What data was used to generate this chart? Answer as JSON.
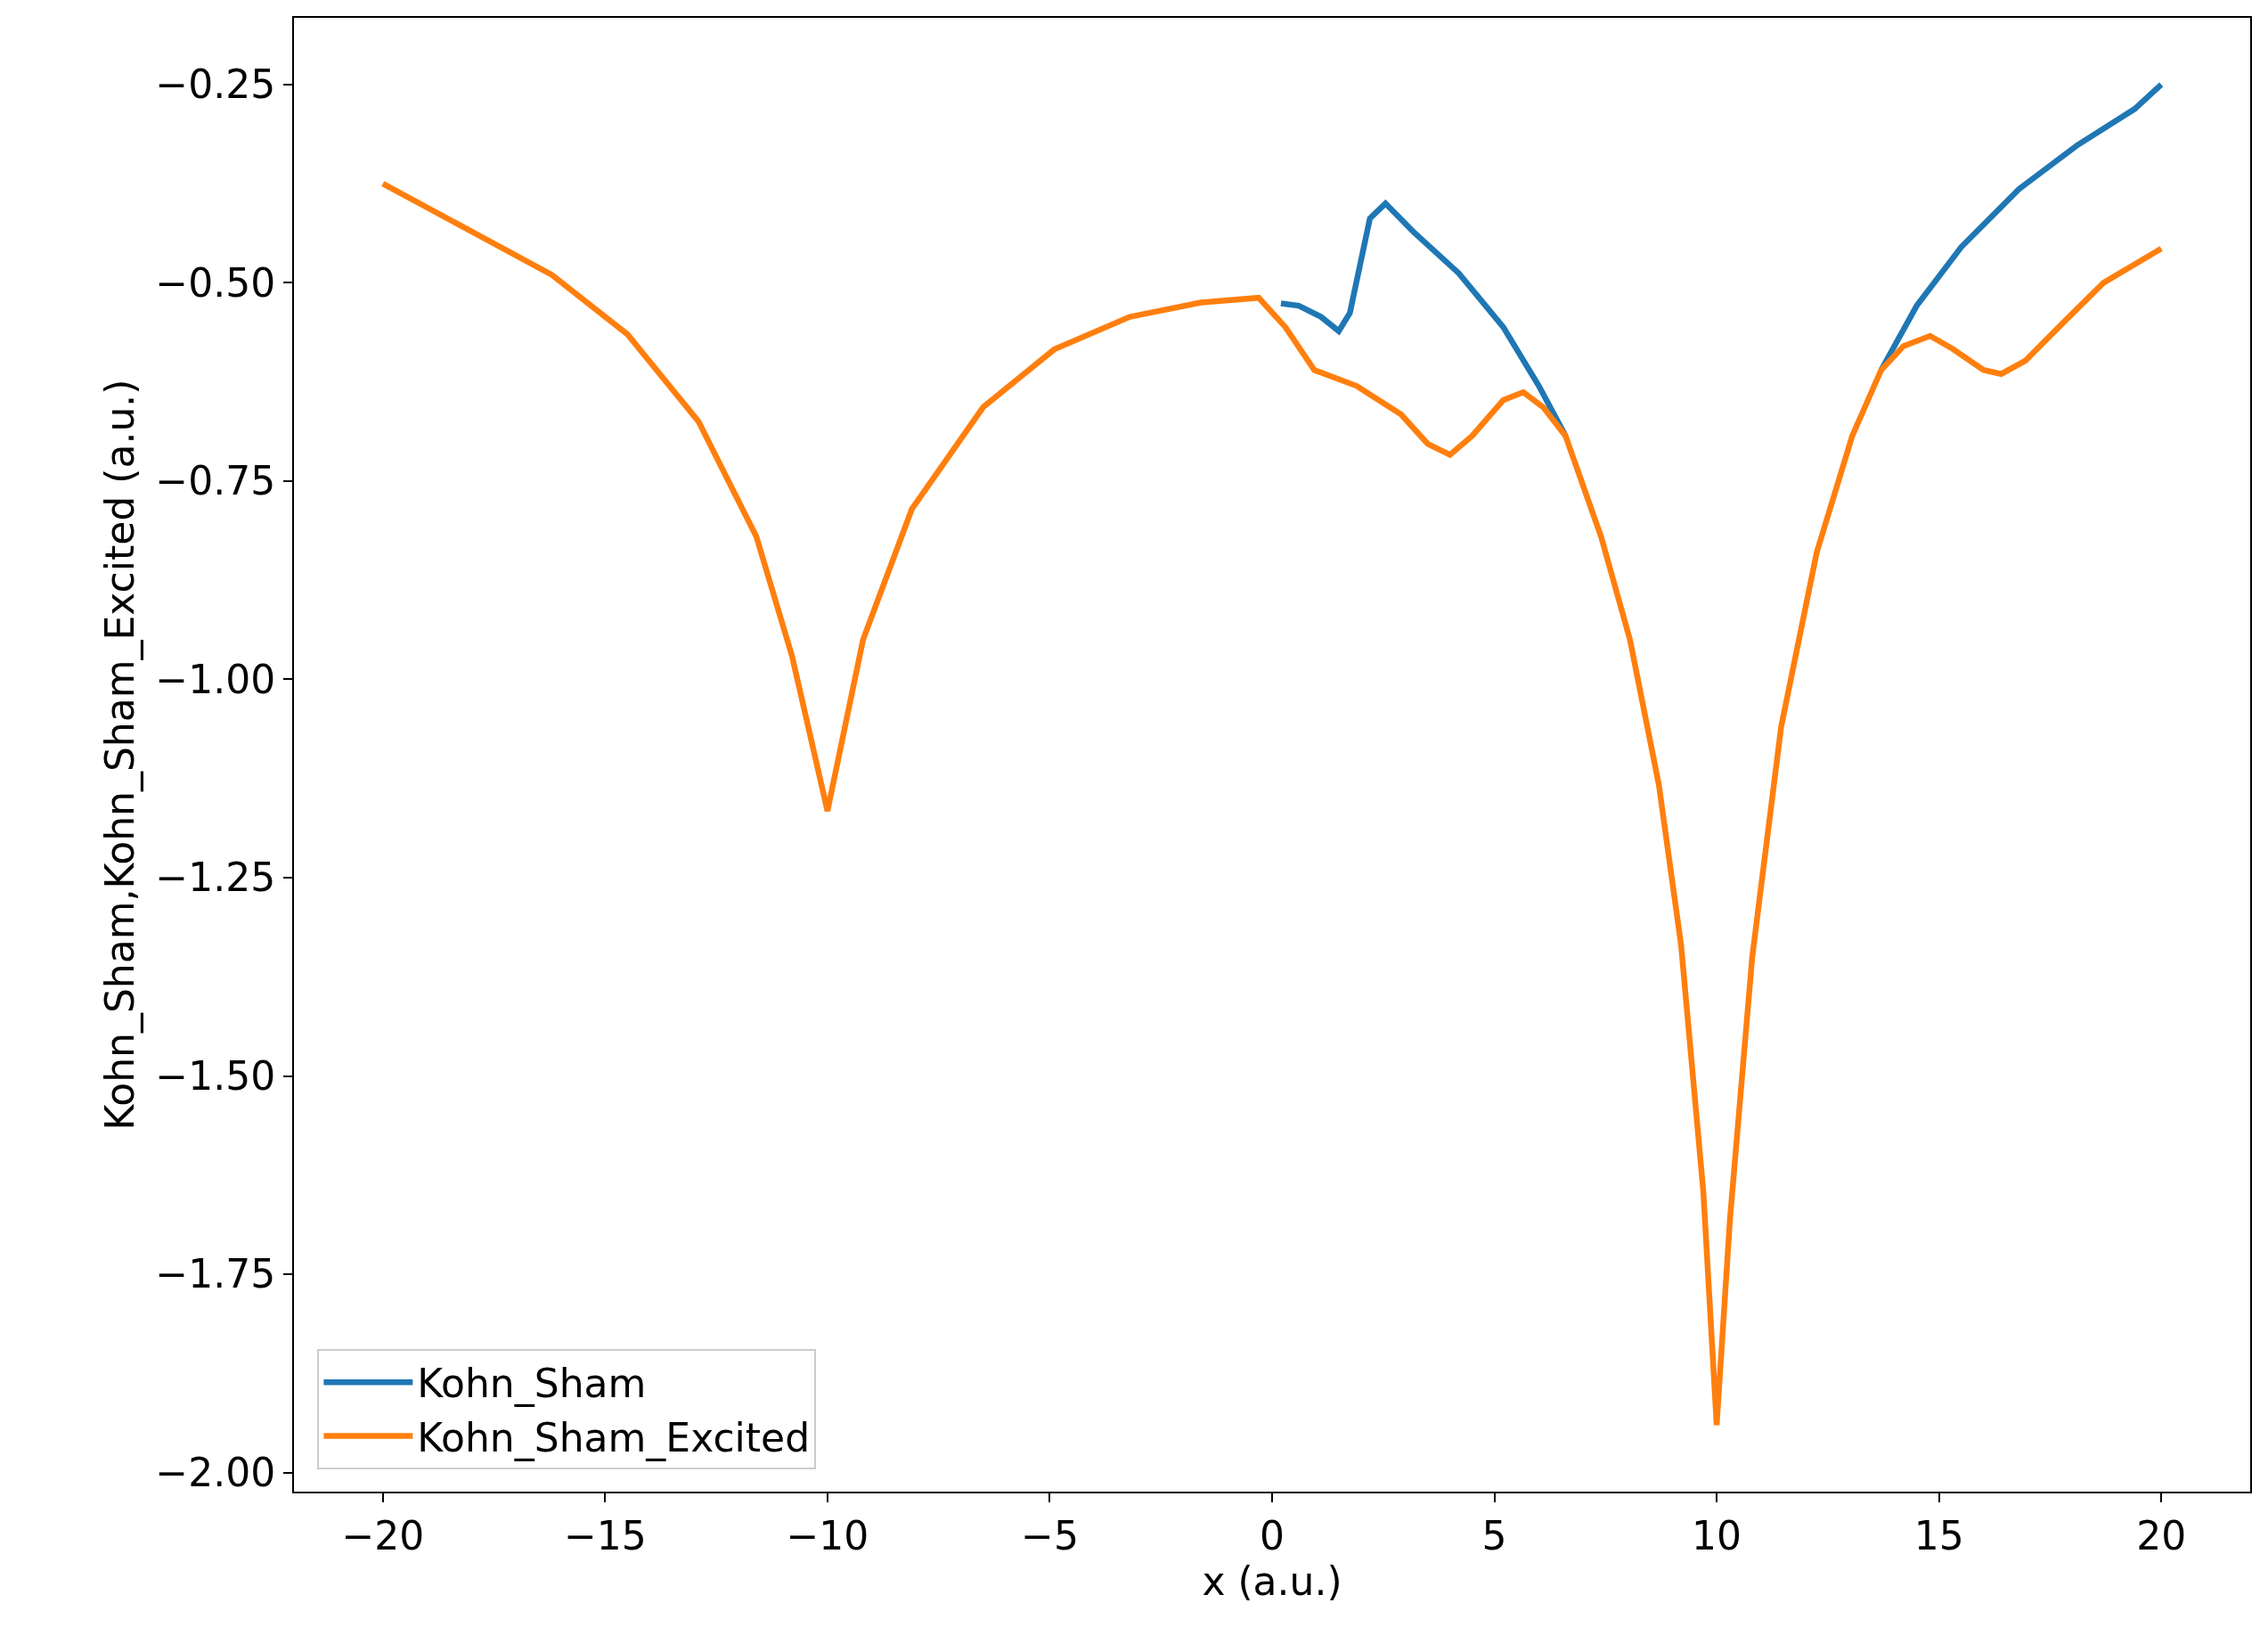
{
  "chart_data": {
    "type": "line",
    "xlabel": "x (a.u.)",
    "ylabel": "Kohn_Sham,Kohn_Sham_Excited (a.u.)",
    "xlim": [
      -22,
      22
    ],
    "ylim": [
      -2.024,
      -0.166
    ],
    "xticks": [
      {
        "value": -20,
        "label": "−20"
      },
      {
        "value": -15,
        "label": "−15"
      },
      {
        "value": -10,
        "label": "−10"
      },
      {
        "value": -5,
        "label": "−5"
      },
      0,
      5,
      10,
      15,
      20
    ],
    "yticks": [
      {
        "value": -2.0,
        "label": "−2.00"
      },
      {
        "value": -1.75,
        "label": "−1.75"
      },
      {
        "value": -1.5,
        "label": "−1.50"
      },
      {
        "value": -1.25,
        "label": "−1.25"
      },
      {
        "value": -1.0,
        "label": "−1.00"
      },
      {
        "value": -0.75,
        "label": "−0.75"
      },
      {
        "value": -0.5,
        "label": "−0.50"
      },
      {
        "value": -0.25,
        "label": "−0.25"
      }
    ],
    "legend": "bottom left",
    "marker": "none",
    "line_style": "solid",
    "series": [
      {
        "name": "Kohn_Sham",
        "color": "#1f77b4",
        "x": [
          0.2,
          0.6,
          1.1,
          1.5,
          1.75,
          2.2,
          2.55,
          3.2,
          4.2,
          5.2,
          6.0,
          6.6,
          null,
          13.7,
          14.5,
          15.5,
          16.8,
          18.1,
          19.4,
          20
        ],
        "values": [
          -0.526,
          -0.529,
          -0.543,
          -0.561,
          -0.538,
          -0.419,
          -0.4,
          -0.437,
          -0.488,
          -0.556,
          -0.63,
          -0.693,
          null,
          -0.61,
          -0.529,
          -0.455,
          -0.382,
          -0.327,
          -0.281,
          -0.25
        ]
      },
      {
        "name": "Kohn_Sham_Excited",
        "color": "#ff7f0e",
        "x": [
          -20,
          -16.2,
          -14.5,
          -12.9,
          -11.6,
          -10.8,
          -10,
          -9.2,
          -8.1,
          -6.5,
          -4.9,
          -3.2,
          -1.6,
          -0.3,
          0.3,
          0.95,
          1.9,
          2.9,
          3.5,
          4.0,
          4.5,
          5.2,
          5.65,
          6.1,
          6.6,
          7.4,
          8.05,
          8.7,
          9.2,
          9.7,
          10,
          10.3,
          10.8,
          11.45,
          12.25,
          13.05,
          13.7,
          14.2,
          14.8,
          15.3,
          16.0,
          16.4,
          16.95,
          17.8,
          18.7,
          20
        ],
        "values": [
          -0.375,
          -0.49,
          -0.565,
          -0.675,
          -0.82,
          -0.97,
          -1.166,
          -0.95,
          -0.785,
          -0.657,
          -0.584,
          -0.543,
          -0.525,
          -0.519,
          -0.556,
          -0.61,
          -0.63,
          -0.666,
          -0.703,
          -0.717,
          -0.693,
          -0.648,
          -0.638,
          -0.657,
          -0.693,
          -0.82,
          -0.95,
          -1.133,
          -1.335,
          -1.646,
          -1.94,
          -1.68,
          -1.35,
          -1.06,
          -0.84,
          -0.693,
          -0.61,
          -0.58,
          -0.567,
          -0.583,
          -0.61,
          -0.615,
          -0.598,
          -0.55,
          -0.5,
          -0.457
        ]
      }
    ]
  }
}
